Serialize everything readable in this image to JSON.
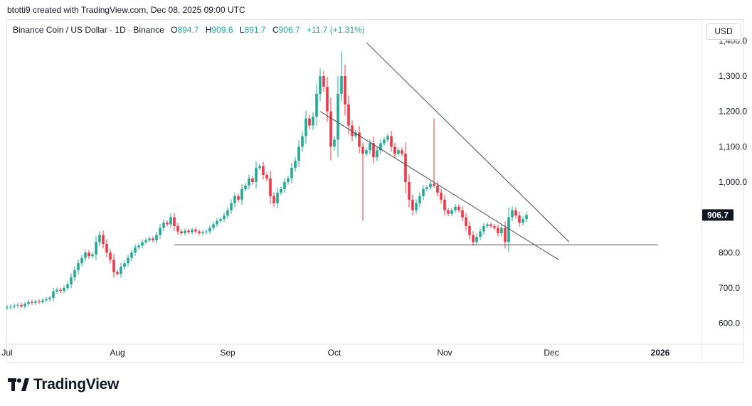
{
  "caption": "btotti9 created with TradingView.com, Dec 08, 2025 09:00 UTC",
  "legend": {
    "symbol": "Binance Coin / US Dollar · 1D · Binance",
    "open_label": "O",
    "open": "894.7",
    "high_label": "H",
    "high": "909.6",
    "low_label": "L",
    "low": "891.7",
    "close_label": "C",
    "close": "906.7",
    "change": "+11.7 (+1.31%)"
  },
  "currency": "USD",
  "brand": "TradingView",
  "colors": {
    "up": "#22ab94",
    "down": "#f23645",
    "line": "#4a4a4a",
    "grid": "#e0e3eb",
    "tag": "#131722"
  },
  "chart_data": {
    "type": "candlestick",
    "ylim": [
      560,
      1400
    ],
    "y_ticks": [
      {
        "label": "1,300.0",
        "value": 1300
      },
      {
        "label": "1,200.0",
        "value": 1200
      },
      {
        "label": "1,100.0",
        "value": 1100
      },
      {
        "label": "1,000.0",
        "value": 1000
      },
      {
        "label": "800.0",
        "value": 800
      },
      {
        "label": "700.0",
        "value": 700
      },
      {
        "label": "600.0",
        "value": 600
      }
    ],
    "x_ticks": [
      {
        "label": "Jul",
        "day": 0
      },
      {
        "label": "Aug",
        "day": 31
      },
      {
        "label": "Sep",
        "day": 62
      },
      {
        "label": "Oct",
        "day": 92
      },
      {
        "label": "Nov",
        "day": 123
      },
      {
        "label": "Dec",
        "day": 153
      },
      {
        "label": "2026",
        "day": 184
      }
    ],
    "last_price_label": "906.7",
    "last_price": 906.7,
    "start_open": 645,
    "candles_close": [
      645,
      647,
      650,
      652,
      648,
      655,
      660,
      658,
      662,
      660,
      665,
      668,
      672,
      690,
      695,
      692,
      700,
      710,
      730,
      750,
      770,
      785,
      800,
      790,
      795,
      830,
      850,
      825,
      800,
      780,
      745,
      740,
      760,
      770,
      785,
      800,
      815,
      820,
      830,
      835,
      840,
      835,
      850,
      870,
      885,
      880,
      900,
      875,
      860,
      855,
      862,
      858,
      865,
      860,
      855,
      858,
      860,
      870,
      880,
      890,
      895,
      905,
      920,
      940,
      960,
      950,
      980,
      990,
      1010,
      1000,
      1040,
      1045,
      1020,
      1010,
      960,
      940,
      970,
      980,
      1000,
      1010,
      1040,
      1060,
      1100,
      1130,
      1180,
      1160,
      1185,
      1250,
      1300,
      1270,
      1200,
      1100,
      1120,
      1250,
      1300,
      1220,
      1160,
      1130,
      1140,
      1100,
      1080,
      1090,
      1110,
      1070,
      1090,
      1110,
      1120,
      1130,
      1100,
      1080,
      1090,
      1080,
      1000,
      950,
      920,
      940,
      960,
      980,
      985,
      995,
      990,
      970,
      950,
      920,
      910,
      920,
      930,
      920,
      900,
      875,
      850,
      830,
      845,
      860,
      875,
      880,
      875,
      870,
      855,
      870,
      830,
      900,
      920,
      905,
      885,
      895,
      907
    ],
    "lines": [
      {
        "name": "upper-trendline",
        "from": [
          101,
          1395
        ],
        "to": [
          158,
          830
        ]
      },
      {
        "name": "lower-trendline",
        "from": [
          88,
          1200
        ],
        "to": [
          155,
          780
        ]
      },
      {
        "name": "support-line",
        "from": [
          47,
          822
        ],
        "to": [
          183,
          822
        ]
      }
    ]
  }
}
